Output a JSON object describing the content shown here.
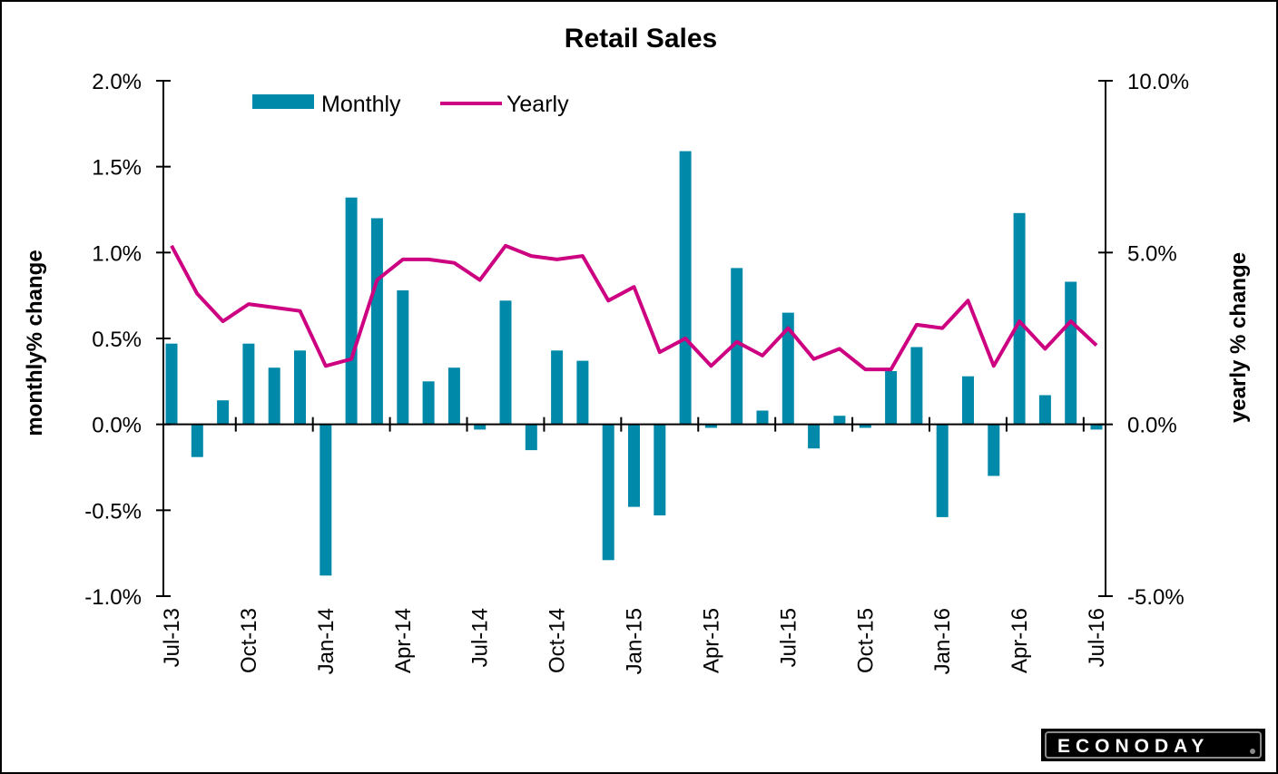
{
  "chart_data": {
    "type": "bar",
    "title": "Retail Sales",
    "ylabel": "monthly% change",
    "y2label": "yearly % change",
    "xlabel": "",
    "ylim": [
      -1.0,
      2.0
    ],
    "y2lim": [
      -5.0,
      10.0
    ],
    "yticks": [
      "-1.0%",
      "-0.5%",
      "0.0%",
      "0.5%",
      "1.0%",
      "1.5%",
      "2.0%"
    ],
    "yticks_values": [
      -1.0,
      -0.5,
      0.0,
      0.5,
      1.0,
      1.5,
      2.0
    ],
    "y2ticks": [
      "-5.0%",
      "0.0%",
      "5.0%",
      "10.0%"
    ],
    "y2ticks_values": [
      -5.0,
      0.0,
      5.0,
      10.0
    ],
    "xtick_labels": [
      "Jul-13",
      "Oct-13",
      "Jan-14",
      "Apr-14",
      "Jul-14",
      "Oct-14",
      "Jan-15",
      "Apr-15",
      "Jul-15",
      "Oct-15",
      "Jan-16",
      "Apr-16",
      "Jul-16"
    ],
    "grid": false,
    "legend_position": "top-left",
    "categories": [
      "Jul-13",
      "Aug-13",
      "Sep-13",
      "Oct-13",
      "Nov-13",
      "Dec-13",
      "Jan-14",
      "Feb-14",
      "Mar-14",
      "Apr-14",
      "May-14",
      "Jun-14",
      "Jul-14",
      "Aug-14",
      "Sep-14",
      "Oct-14",
      "Nov-14",
      "Dec-14",
      "Jan-15",
      "Feb-15",
      "Mar-15",
      "Apr-15",
      "May-15",
      "Jun-15",
      "Jul-15",
      "Aug-15",
      "Sep-15",
      "Oct-15",
      "Nov-15",
      "Dec-15",
      "Jan-16",
      "Feb-16",
      "Mar-16",
      "Apr-16",
      "May-16",
      "Jun-16",
      "Jul-16"
    ],
    "series": [
      {
        "name": "Monthly",
        "type": "bar",
        "axis": "left",
        "color": "#0089a8",
        "values": [
          0.47,
          -0.19,
          0.14,
          0.47,
          0.33,
          0.43,
          -0.88,
          1.32,
          1.2,
          0.78,
          0.25,
          0.33,
          -0.03,
          0.72,
          -0.15,
          0.43,
          0.37,
          -0.79,
          -0.48,
          -0.53,
          1.59,
          -0.02,
          0.91,
          0.08,
          0.65,
          -0.14,
          0.05,
          -0.02,
          0.31,
          0.45,
          -0.54,
          0.28,
          -0.3,
          1.23,
          0.17,
          0.83,
          -0.03
        ]
      },
      {
        "name": "Yearly",
        "type": "line",
        "axis": "right",
        "color": "#cc0080",
        "values": [
          5.2,
          3.8,
          3.0,
          3.5,
          3.4,
          3.3,
          1.7,
          1.9,
          4.2,
          4.8,
          4.8,
          4.7,
          4.2,
          5.2,
          4.9,
          4.8,
          4.9,
          3.6,
          4.0,
          2.1,
          2.5,
          1.7,
          2.4,
          2.0,
          2.8,
          1.9,
          2.2,
          1.6,
          1.6,
          2.9,
          2.8,
          3.6,
          1.7,
          3.0,
          2.2,
          3.0,
          2.3
        ]
      }
    ]
  },
  "legend": {
    "monthly_label": "Monthly",
    "yearly_label": "Yearly"
  },
  "logo": {
    "text": "ECONODAY"
  }
}
